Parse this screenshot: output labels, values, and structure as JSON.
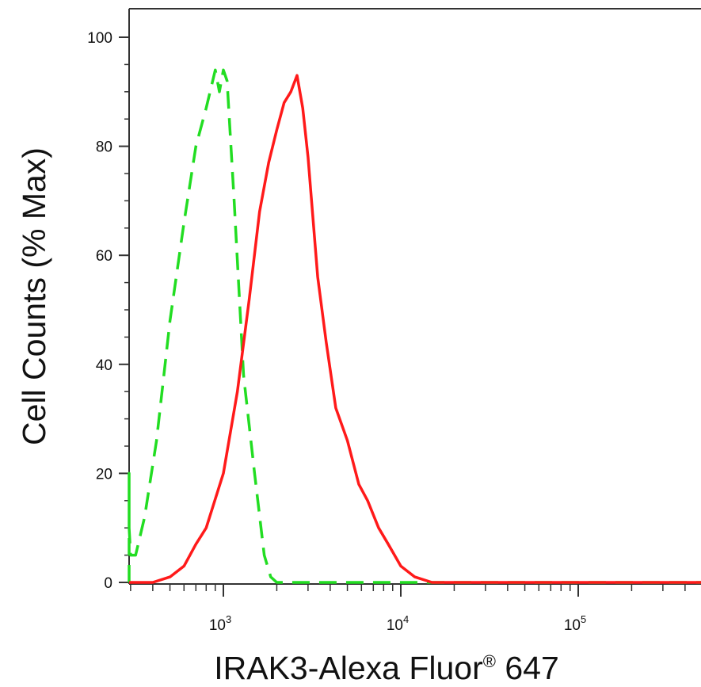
{
  "chart_data": {
    "type": "line",
    "title": "",
    "xlabel": "IRAK3-Alexa Fluor",
    "xlabel_mark": "®",
    "xlabel_suffix": " 647",
    "ylabel": "Cell Counts (% Max)",
    "x_scale": "log",
    "xlim": [
      270,
      500000
    ],
    "ylim": [
      0,
      105
    ],
    "grid": false,
    "legend": "none",
    "x_ticks": [
      {
        "value": 1000,
        "base": "10",
        "exp": "3"
      },
      {
        "value": 10000,
        "base": "10",
        "exp": "4"
      },
      {
        "value": 100000,
        "base": "10",
        "exp": "5"
      }
    ],
    "y_ticks": [
      {
        "value": 0,
        "label": "0"
      },
      {
        "value": 20,
        "label": "20"
      },
      {
        "value": 40,
        "label": "40"
      },
      {
        "value": 60,
        "label": "60"
      },
      {
        "value": 80,
        "label": "80"
      },
      {
        "value": 100,
        "label": "100"
      }
    ],
    "series": [
      {
        "color": "#22dd22",
        "style": "dashed",
        "x": [
          270,
          280,
          290,
          300,
          320,
          360,
          420,
          500,
          600,
          700,
          800,
          900,
          950,
          1000,
          1050,
          1150,
          1300,
          1500,
          1700,
          1850,
          2000,
          2200,
          3000,
          5000,
          10000,
          50000,
          500000
        ],
        "y": [
          0,
          20,
          10,
          5,
          5,
          12,
          26,
          48,
          66,
          80,
          87,
          94,
          90,
          94,
          92,
          70,
          38,
          20,
          5,
          1,
          0,
          0,
          0,
          0,
          0,
          0,
          0
        ]
      },
      {
        "color": "#ff1a1a",
        "style": "solid",
        "x": [
          270,
          400,
          500,
          600,
          700,
          800,
          1000,
          1200,
          1400,
          1600,
          1800,
          2000,
          2200,
          2400,
          2600,
          2800,
          3000,
          3400,
          3800,
          4300,
          5000,
          5800,
          6500,
          7500,
          8500,
          10000,
          12000,
          15000,
          20000,
          50000,
          500000
        ],
        "y": [
          0,
          0,
          1,
          3,
          7,
          10,
          20,
          35,
          52,
          68,
          77,
          83,
          88,
          90,
          93,
          87,
          78,
          56,
          44,
          32,
          26,
          18,
          15,
          10,
          7,
          3,
          1,
          0,
          0,
          0,
          0
        ]
      }
    ]
  }
}
